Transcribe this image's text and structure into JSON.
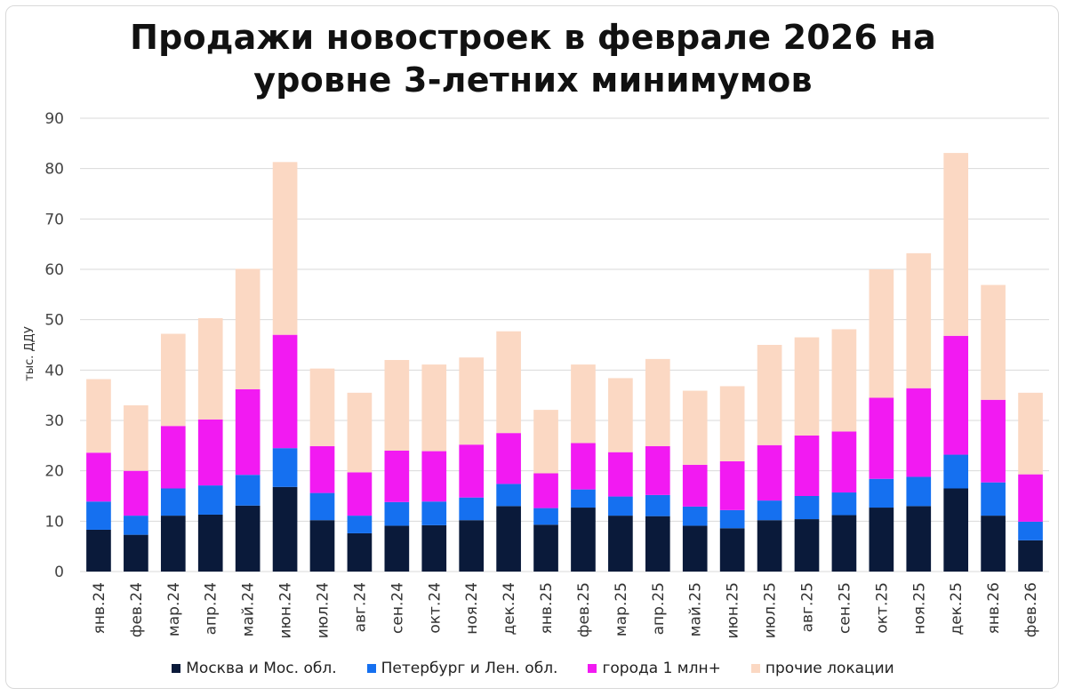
{
  "title": {
    "line1": "Продажи новостроек в феврале 2026 на",
    "line2": "уровне 3-летних минимумов"
  },
  "chart_data": {
    "type": "bar",
    "stacked": true,
    "ylabel": "тыс. ДДУ",
    "ylim": [
      0,
      90
    ],
    "yticks": [
      0,
      10,
      20,
      30,
      40,
      50,
      60,
      70,
      80,
      90
    ],
    "grid": true,
    "legend_position": "bottom",
    "categories": [
      "янв.24",
      "фев.24",
      "мар.24",
      "апр.24",
      "май.24",
      "июн.24",
      "июл.24",
      "авг.24",
      "сен.24",
      "окт.24",
      "ноя.24",
      "дек.24",
      "янв.25",
      "фев.25",
      "мар.25",
      "апр.25",
      "май.25",
      "июн.25",
      "июл.25",
      "авг.25",
      "сен.25",
      "окт.25",
      "ноя.25",
      "дек.25",
      "янв.26",
      "фев.26"
    ],
    "series": [
      {
        "name": "Москва и Мос. обл.",
        "color": "#0a1a3a",
        "values": [
          8.3,
          7.3,
          11.1,
          11.3,
          13.1,
          16.8,
          10.2,
          7.6,
          9.1,
          9.2,
          10.2,
          13.0,
          9.3,
          12.7,
          11.1,
          11.0,
          9.1,
          8.6,
          10.2,
          10.4,
          11.2,
          12.7,
          13.0,
          16.5,
          11.1,
          6.2
        ]
      },
      {
        "name": "Петербург и Лен. обл.",
        "color": "#1570f0",
        "values": [
          5.6,
          3.8,
          5.4,
          5.8,
          6.1,
          7.7,
          5.4,
          3.5,
          4.7,
          4.7,
          4.5,
          4.4,
          3.3,
          3.6,
          3.8,
          4.2,
          3.8,
          3.6,
          3.9,
          4.6,
          4.5,
          5.7,
          5.8,
          6.7,
          6.6,
          3.7
        ]
      },
      {
        "name": "города 1 млн+",
        "color": "#f21af2",
        "values": [
          9.7,
          8.9,
          12.4,
          13.1,
          17.0,
          22.5,
          9.3,
          8.6,
          10.2,
          10.0,
          10.5,
          10.1,
          6.9,
          9.2,
          8.8,
          9.7,
          8.3,
          9.7,
          11.0,
          12.0,
          12.1,
          16.1,
          17.6,
          23.6,
          16.4,
          9.4
        ]
      },
      {
        "name": "прочие локации",
        "color": "#fbd8c3",
        "values": [
          14.6,
          13.0,
          18.3,
          20.1,
          23.9,
          34.3,
          15.4,
          15.8,
          18.0,
          17.2,
          17.3,
          20.2,
          12.6,
          15.6,
          14.7,
          17.3,
          14.7,
          14.9,
          19.9,
          19.5,
          20.3,
          25.5,
          26.8,
          36.3,
          22.8,
          16.2
        ]
      }
    ]
  }
}
